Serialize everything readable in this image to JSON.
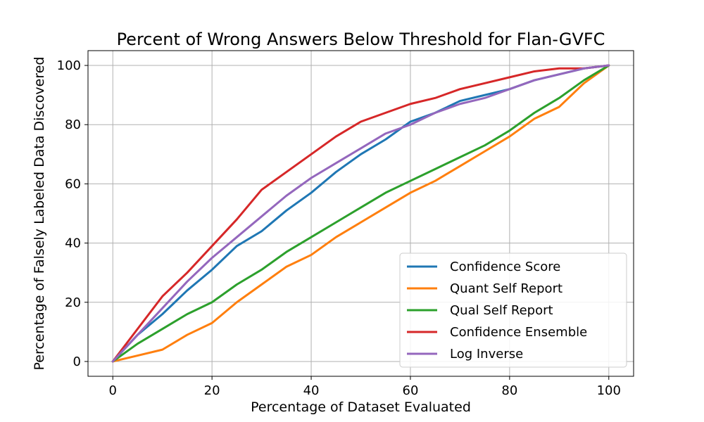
{
  "chart_data": {
    "type": "line",
    "title": "Percent of Wrong Answers Below Threshold for Flan-GVFC",
    "xlabel": "Percentage of Dataset Evaluated",
    "ylabel": "Percentage of Falsely Labeled Data Discovered",
    "xlim": [
      -5,
      105
    ],
    "ylim": [
      -5,
      105
    ],
    "xticks": [
      0,
      20,
      40,
      60,
      80,
      100
    ],
    "yticks": [
      0,
      20,
      40,
      60,
      80,
      100
    ],
    "grid": true,
    "legend_position": "lower-right",
    "x": [
      0,
      5,
      10,
      15,
      20,
      25,
      30,
      35,
      40,
      45,
      50,
      55,
      60,
      65,
      70,
      75,
      80,
      85,
      90,
      95,
      100
    ],
    "series": [
      {
        "name": "Confidence Score",
        "color": "#1f77b4",
        "values": [
          0,
          9,
          16,
          24,
          31,
          39,
          44,
          51,
          57,
          64,
          70,
          75,
          81,
          84,
          88,
          90,
          92,
          95,
          97,
          99,
          100
        ]
      },
      {
        "name": "Quant Self Report",
        "color": "#ff7f0e",
        "values": [
          0,
          2,
          4,
          9,
          13,
          20,
          26,
          32,
          36,
          42,
          47,
          52,
          57,
          61,
          66,
          71,
          76,
          82,
          86,
          94,
          100
        ]
      },
      {
        "name": "Qual Self Report",
        "color": "#2ca02c",
        "values": [
          0,
          6,
          11,
          16,
          20,
          26,
          31,
          37,
          42,
          47,
          52,
          57,
          61,
          65,
          69,
          73,
          78,
          84,
          89,
          95,
          100
        ]
      },
      {
        "name": "Confidence Ensemble",
        "color": "#d62728",
        "values": [
          0,
          11,
          22,
          30,
          39,
          48,
          58,
          64,
          70,
          76,
          81,
          84,
          87,
          89,
          92,
          94,
          96,
          98,
          99,
          99,
          100
        ]
      },
      {
        "name": "Log Inverse",
        "color": "#9467bd",
        "values": [
          0,
          9,
          18,
          27,
          35,
          42,
          49,
          56,
          62,
          67,
          72,
          77,
          80,
          84,
          87,
          89,
          92,
          95,
          97,
          99,
          100
        ]
      }
    ]
  }
}
